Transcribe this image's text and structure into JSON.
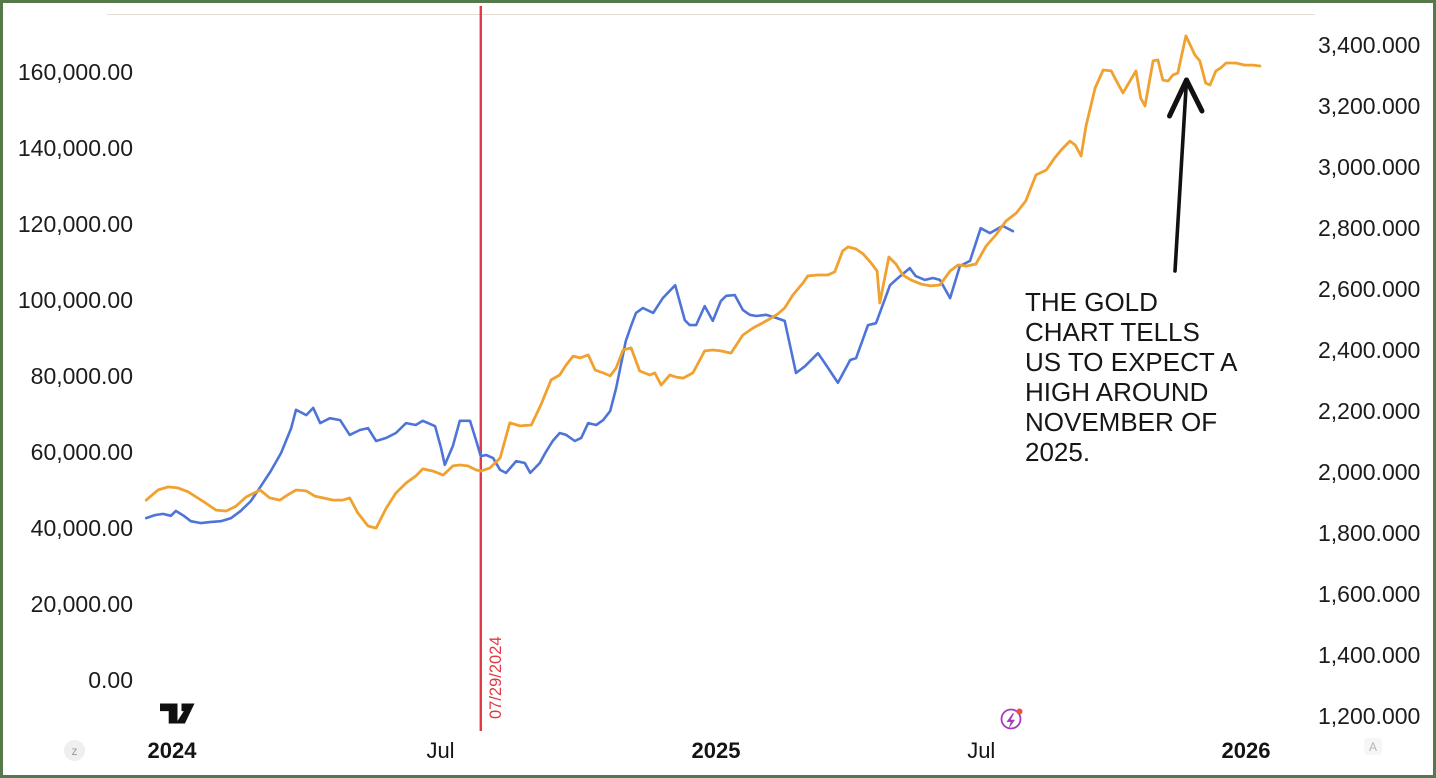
{
  "window": {
    "background": "#ffffff",
    "border_color": "#55794a"
  },
  "badges": {
    "left_letter": "z",
    "right_letter": "A"
  },
  "chart_data": {
    "type": "line",
    "title": "",
    "grid": false,
    "legend": "none",
    "x_axis": {
      "range": [
        2023.94,
        2026.06
      ],
      "labels": [
        {
          "text": "2024",
          "t": 2024.0,
          "bold": true
        },
        {
          "text": "Jul",
          "t": 2024.5,
          "bold": false
        },
        {
          "text": "2025",
          "t": 2025.013,
          "bold": true
        },
        {
          "text": "Jul",
          "t": 2025.507,
          "bold": false
        },
        {
          "text": "2026",
          "t": 2026.0,
          "bold": true
        }
      ]
    },
    "left_axis": {
      "min": 0,
      "max": 160000,
      "tick_step": 20000,
      "ticks": [
        {
          "label": "160,000.00",
          "value": 160000
        },
        {
          "label": "140,000.00",
          "value": 140000
        },
        {
          "label": "120,000.00",
          "value": 120000
        },
        {
          "label": "100,000.00",
          "value": 100000
        },
        {
          "label": "80,000.00",
          "value": 80000
        },
        {
          "label": "60,000.00",
          "value": 60000
        },
        {
          "label": "40,000.00",
          "value": 40000
        },
        {
          "label": "20,000.00",
          "value": 20000
        },
        {
          "label": "0.00",
          "value": 0
        }
      ]
    },
    "right_axis": {
      "min": 1200,
      "max": 3400,
      "tick_step": 200,
      "ticks": [
        {
          "label": "3,400.000",
          "value": 3400
        },
        {
          "label": "3,200.000",
          "value": 3200
        },
        {
          "label": "3,000.000",
          "value": 3000
        },
        {
          "label": "2,800.000",
          "value": 2800
        },
        {
          "label": "2,600.000",
          "value": 2600
        },
        {
          "label": "2,400.000",
          "value": 2400
        },
        {
          "label": "2,200.000",
          "value": 2200
        },
        {
          "label": "2,000.000",
          "value": 2000
        },
        {
          "label": "1,800.000",
          "value": 1800
        },
        {
          "label": "1,600.000",
          "value": 1600
        },
        {
          "label": "1,400.000",
          "value": 1400
        },
        {
          "label": "1,200.000",
          "value": 1200
        }
      ]
    },
    "vline": {
      "label": "07/29/2024",
      "t": 2024.575,
      "color": "#e03845"
    },
    "annotation": {
      "text": "THE GOLD CHART TELLS US TO EXPECT A HIGH AROUND NOVEMBER OF 2025.",
      "lines": [
        "THE GOLD",
        "CHART TELLS",
        "US TO EXPECT A",
        "HIGH AROUND",
        "NOVEMBER OF",
        "2025."
      ],
      "arrow_points_at": "gold series peak near November 2025"
    },
    "series": [
      {
        "name": "blue-line",
        "axis": "left",
        "color": "#4f74d8",
        "points": [
          [
            2023.952,
            42600
          ],
          [
            2023.968,
            43400
          ],
          [
            2023.983,
            43700
          ],
          [
            2023.998,
            43200
          ],
          [
            2024.007,
            44500
          ],
          [
            2024.022,
            43200
          ],
          [
            2024.035,
            41800
          ],
          [
            2024.054,
            41300
          ],
          [
            2024.073,
            41600
          ],
          [
            2024.091,
            41800
          ],
          [
            2024.11,
            42600
          ],
          [
            2024.128,
            44500
          ],
          [
            2024.147,
            47100
          ],
          [
            2024.166,
            51100
          ],
          [
            2024.184,
            55000
          ],
          [
            2024.203,
            59700
          ],
          [
            2024.222,
            66300
          ],
          [
            2024.231,
            71100
          ],
          [
            2024.25,
            69700
          ],
          [
            2024.263,
            71600
          ],
          [
            2024.276,
            67600
          ],
          [
            2024.294,
            68900
          ],
          [
            2024.313,
            68400
          ],
          [
            2024.331,
            64500
          ],
          [
            2024.35,
            65800
          ],
          [
            2024.365,
            66300
          ],
          [
            2024.38,
            62900
          ],
          [
            2024.399,
            63700
          ],
          [
            2024.417,
            65000
          ],
          [
            2024.436,
            67600
          ],
          [
            2024.454,
            67100
          ],
          [
            2024.467,
            68200
          ],
          [
            2024.49,
            66800
          ],
          [
            2024.501,
            61100
          ],
          [
            2024.508,
            56600
          ],
          [
            2024.523,
            61600
          ],
          [
            2024.536,
            68200
          ],
          [
            2024.555,
            68200
          ],
          [
            2024.566,
            63200
          ],
          [
            2024.575,
            58900
          ],
          [
            2024.585,
            59200
          ],
          [
            2024.598,
            58400
          ],
          [
            2024.611,
            55300
          ],
          [
            2024.622,
            54500
          ],
          [
            2024.641,
            57600
          ],
          [
            2024.657,
            57100
          ],
          [
            2024.667,
            54500
          ],
          [
            2024.685,
            57100
          ],
          [
            2024.695,
            59700
          ],
          [
            2024.709,
            62900
          ],
          [
            2024.722,
            65000
          ],
          [
            2024.734,
            64500
          ],
          [
            2024.75,
            62900
          ],
          [
            2024.762,
            63700
          ],
          [
            2024.775,
            67600
          ],
          [
            2024.79,
            67100
          ],
          [
            2024.803,
            68400
          ],
          [
            2024.816,
            70800
          ],
          [
            2024.827,
            76800
          ],
          [
            2024.845,
            89200
          ],
          [
            2024.855,
            93200
          ],
          [
            2024.864,
            96600
          ],
          [
            2024.877,
            97900
          ],
          [
            2024.896,
            96600
          ],
          [
            2024.914,
            100500
          ],
          [
            2024.937,
            103900
          ],
          [
            2024.955,
            94700
          ],
          [
            2024.964,
            93400
          ],
          [
            2024.976,
            93400
          ],
          [
            2024.992,
            98400
          ],
          [
            2025.007,
            94500
          ],
          [
            2025.022,
            99700
          ],
          [
            2025.032,
            101100
          ],
          [
            2025.048,
            101300
          ],
          [
            2025.063,
            97400
          ],
          [
            2025.076,
            96100
          ],
          [
            2025.088,
            95800
          ],
          [
            2025.106,
            96100
          ],
          [
            2025.125,
            95300
          ],
          [
            2025.141,
            94500
          ],
          [
            2025.162,
            80800
          ],
          [
            2025.179,
            82600
          ],
          [
            2025.203,
            86000
          ],
          [
            2025.218,
            82900
          ],
          [
            2025.24,
            78200
          ],
          [
            2025.263,
            84200
          ],
          [
            2025.274,
            84700
          ],
          [
            2025.296,
            93400
          ],
          [
            2025.311,
            93900
          ],
          [
            2025.337,
            103900
          ],
          [
            2025.352,
            105800
          ],
          [
            2025.374,
            108400
          ],
          [
            2025.385,
            106300
          ],
          [
            2025.402,
            105300
          ],
          [
            2025.417,
            105800
          ],
          [
            2025.43,
            105300
          ],
          [
            2025.449,
            100500
          ],
          [
            2025.467,
            108900
          ],
          [
            2025.486,
            110300
          ],
          [
            2025.506,
            118900
          ],
          [
            2025.523,
            117600
          ],
          [
            2025.547,
            119500
          ],
          [
            2025.566,
            118100
          ]
        ]
      },
      {
        "name": "gold-line",
        "axis": "right",
        "color": "#f0a12f",
        "points": [
          [
            2023.952,
            1908
          ],
          [
            2023.974,
            1941
          ],
          [
            2023.993,
            1951
          ],
          [
            2024.011,
            1948
          ],
          [
            2024.03,
            1935
          ],
          [
            2024.045,
            1918
          ],
          [
            2024.063,
            1898
          ],
          [
            2024.082,
            1875
          ],
          [
            2024.101,
            1872
          ],
          [
            2024.119,
            1888
          ],
          [
            2024.138,
            1918
          ],
          [
            2024.164,
            1941
          ],
          [
            2024.182,
            1915
          ],
          [
            2024.201,
            1908
          ],
          [
            2024.212,
            1921
          ],
          [
            2024.231,
            1941
          ],
          [
            2024.25,
            1938
          ],
          [
            2024.266,
            1921
          ],
          [
            2024.281,
            1915
          ],
          [
            2024.3,
            1908
          ],
          [
            2024.318,
            1908
          ],
          [
            2024.331,
            1915
          ],
          [
            2024.346,
            1866
          ],
          [
            2024.365,
            1823
          ],
          [
            2024.38,
            1816
          ],
          [
            2024.399,
            1882
          ],
          [
            2024.417,
            1931
          ],
          [
            2024.436,
            1964
          ],
          [
            2024.454,
            1987
          ],
          [
            2024.467,
            2010
          ],
          [
            2024.486,
            2003
          ],
          [
            2024.505,
            1990
          ],
          [
            2024.523,
            2020
          ],
          [
            2024.536,
            2023
          ],
          [
            2024.551,
            2020
          ],
          [
            2024.566,
            2007
          ],
          [
            2024.575,
            2003
          ],
          [
            2024.592,
            2013
          ],
          [
            2024.611,
            2046
          ],
          [
            2024.629,
            2161
          ],
          [
            2024.648,
            2151
          ],
          [
            2024.669,
            2154
          ],
          [
            2024.687,
            2220
          ],
          [
            2024.706,
            2302
          ],
          [
            2024.722,
            2318
          ],
          [
            2024.734,
            2351
          ],
          [
            2024.747,
            2380
          ],
          [
            2024.76,
            2374
          ],
          [
            2024.775,
            2384
          ],
          [
            2024.788,
            2334
          ],
          [
            2024.803,
            2325
          ],
          [
            2024.816,
            2315
          ],
          [
            2024.827,
            2341
          ],
          [
            2024.84,
            2400
          ],
          [
            2024.855,
            2407
          ],
          [
            2024.871,
            2331
          ],
          [
            2024.89,
            2318
          ],
          [
            2024.899,
            2325
          ],
          [
            2024.911,
            2285
          ],
          [
            2024.927,
            2318
          ],
          [
            2024.939,
            2311
          ],
          [
            2024.952,
            2308
          ],
          [
            2024.97,
            2325
          ],
          [
            2024.992,
            2397
          ],
          [
            2025.007,
            2400
          ],
          [
            2025.022,
            2397
          ],
          [
            2025.041,
            2390
          ],
          [
            2025.063,
            2449
          ],
          [
            2025.082,
            2472
          ],
          [
            2025.1,
            2489
          ],
          [
            2025.113,
            2502
          ],
          [
            2025.128,
            2518
          ],
          [
            2025.141,
            2538
          ],
          [
            2025.156,
            2580
          ],
          [
            2025.175,
            2620
          ],
          [
            2025.184,
            2643
          ],
          [
            2025.203,
            2646
          ],
          [
            2025.221,
            2646
          ],
          [
            2025.234,
            2656
          ],
          [
            2025.249,
            2725
          ],
          [
            2025.259,
            2738
          ],
          [
            2025.274,
            2731
          ],
          [
            2025.287,
            2715
          ],
          [
            2025.302,
            2685
          ],
          [
            2025.313,
            2659
          ],
          [
            2025.318,
            2554
          ],
          [
            2025.335,
            2705
          ],
          [
            2025.348,
            2682
          ],
          [
            2025.361,
            2646
          ],
          [
            2025.376,
            2630
          ],
          [
            2025.395,
            2616
          ],
          [
            2025.413,
            2610
          ],
          [
            2025.43,
            2613
          ],
          [
            2025.449,
            2659
          ],
          [
            2025.464,
            2679
          ],
          [
            2025.479,
            2675
          ],
          [
            2025.497,
            2682
          ],
          [
            2025.516,
            2741
          ],
          [
            2025.534,
            2777
          ],
          [
            2025.553,
            2823
          ],
          [
            2025.572,
            2849
          ],
          [
            2025.59,
            2889
          ],
          [
            2025.609,
            2974
          ],
          [
            2025.628,
            2990
          ],
          [
            2025.644,
            3030
          ],
          [
            2025.656,
            3056
          ],
          [
            2025.672,
            3085
          ],
          [
            2025.682,
            3072
          ],
          [
            2025.693,
            3036
          ],
          [
            2025.702,
            3134
          ],
          [
            2025.719,
            3259
          ],
          [
            2025.734,
            3318
          ],
          [
            2025.749,
            3315
          ],
          [
            2025.758,
            3285
          ],
          [
            2025.771,
            3243
          ],
          [
            2025.784,
            3282
          ],
          [
            2025.795,
            3315
          ],
          [
            2025.804,
            3226
          ],
          [
            2025.812,
            3200
          ],
          [
            2025.827,
            3348
          ],
          [
            2025.836,
            3351
          ],
          [
            2025.845,
            3285
          ],
          [
            2025.855,
            3282
          ],
          [
            2025.864,
            3302
          ],
          [
            2025.873,
            3308
          ],
          [
            2025.888,
            3430
          ],
          [
            2025.905,
            3367
          ],
          [
            2025.914,
            3348
          ],
          [
            2025.925,
            3275
          ],
          [
            2025.933,
            3269
          ],
          [
            2025.944,
            3315
          ],
          [
            2025.953,
            3325
          ],
          [
            2025.963,
            3341
          ],
          [
            2025.981,
            3341
          ],
          [
            2025.998,
            3334
          ],
          [
            2026.013,
            3334
          ],
          [
            2026.026,
            3331
          ]
        ]
      }
    ]
  }
}
